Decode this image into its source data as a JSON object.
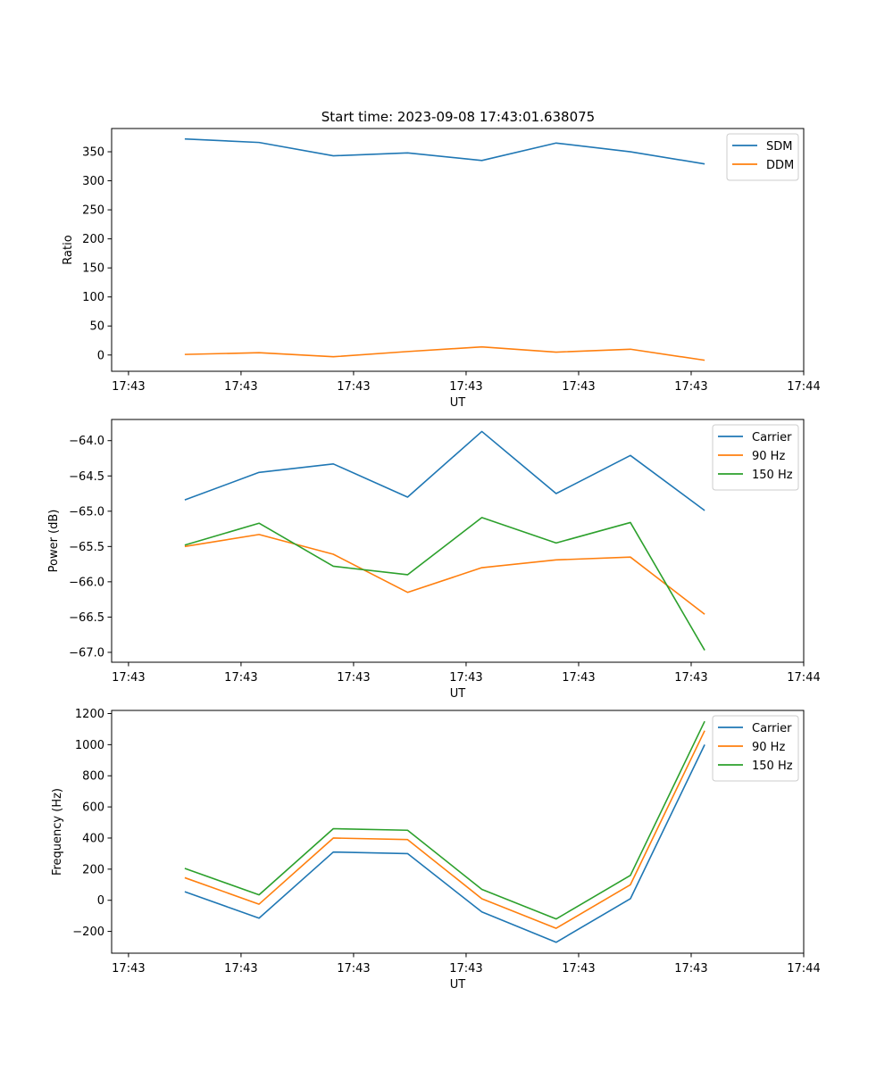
{
  "chart_data": [
    {
      "type": "line",
      "title": "Start time: 2023-09-08 17:43:01.638075",
      "xlabel": "UT",
      "ylabel": "Ratio",
      "x_tick_labels": [
        "17:43",
        "17:43",
        "17:43",
        "17:43",
        "17:43",
        "17:43",
        "17:44"
      ],
      "x_points": [
        0.5,
        1.16,
        1.82,
        2.48,
        3.14,
        3.8,
        4.46,
        5.12
      ],
      "xlim": [
        -0.15,
        6.0
      ],
      "y_ticks": [
        0,
        50,
        100,
        150,
        200,
        250,
        300,
        350
      ],
      "ylim": [
        -28,
        390
      ],
      "grid": false,
      "legend_position": "top-right",
      "series": [
        {
          "name": "SDM",
          "color": "#1f77b4",
          "values": [
            372,
            366,
            343,
            348,
            335,
            365,
            350,
            329
          ]
        },
        {
          "name": "DDM",
          "color": "#ff7f0e",
          "values": [
            1,
            4,
            -3,
            6,
            14,
            5,
            10,
            -9
          ]
        }
      ]
    },
    {
      "type": "line",
      "title": "",
      "xlabel": "UT",
      "ylabel": "Power (dB)",
      "x_tick_labels": [
        "17:43",
        "17:43",
        "17:43",
        "17:43",
        "17:43",
        "17:43",
        "17:44"
      ],
      "x_points": [
        0.5,
        1.16,
        1.82,
        2.48,
        3.14,
        3.8,
        4.46,
        5.12
      ],
      "xlim": [
        -0.15,
        6.0
      ],
      "y_ticks": [
        -67.0,
        -66.5,
        -66.0,
        -65.5,
        -65.0,
        -64.5,
        -64.0
      ],
      "y_tick_labels": [
        "−67.0",
        "−66.5",
        "−66.0",
        "−65.5",
        "−65.0",
        "−64.5",
        "−64.0"
      ],
      "ylim": [
        -67.14,
        -63.7
      ],
      "grid": false,
      "legend_position": "top-right",
      "series": [
        {
          "name": "Carrier",
          "color": "#1f77b4",
          "values": [
            -64.84,
            -64.45,
            -64.33,
            -64.8,
            -63.87,
            -64.75,
            -64.21,
            -64.99
          ]
        },
        {
          "name": "90 Hz",
          "color": "#ff7f0e",
          "values": [
            -65.5,
            -65.33,
            -65.61,
            -66.15,
            -65.8,
            -65.69,
            -65.65,
            -66.46
          ]
        },
        {
          "name": "150 Hz",
          "color": "#2ca02c",
          "values": [
            -65.48,
            -65.17,
            -65.78,
            -65.9,
            -65.09,
            -65.45,
            -65.16,
            -66.97
          ]
        }
      ]
    },
    {
      "type": "line",
      "title": "",
      "xlabel": "UT",
      "ylabel": "Frequency (Hz)",
      "x_tick_labels": [
        "17:43",
        "17:43",
        "17:43",
        "17:43",
        "17:43",
        "17:43",
        "17:44"
      ],
      "x_points": [
        0.5,
        1.16,
        1.82,
        2.48,
        3.14,
        3.8,
        4.46,
        5.12
      ],
      "xlim": [
        -0.15,
        6.0
      ],
      "y_ticks": [
        -200,
        0,
        200,
        400,
        600,
        800,
        1000,
        1200
      ],
      "y_tick_labels": [
        "−200",
        "0",
        "200",
        "400",
        "600",
        "800",
        "1000",
        "1200"
      ],
      "ylim": [
        -340,
        1220
      ],
      "grid": false,
      "legend_position": "top-right",
      "series": [
        {
          "name": "Carrier",
          "color": "#1f77b4",
          "values": [
            55,
            -115,
            310,
            300,
            -75,
            -270,
            10,
            1000
          ]
        },
        {
          "name": "90 Hz",
          "color": "#ff7f0e",
          "values": [
            145,
            -25,
            400,
            390,
            10,
            -180,
            100,
            1090
          ]
        },
        {
          "name": "150 Hz",
          "color": "#2ca02c",
          "values": [
            205,
            35,
            460,
            450,
            70,
            -120,
            160,
            1150
          ]
        }
      ]
    }
  ]
}
